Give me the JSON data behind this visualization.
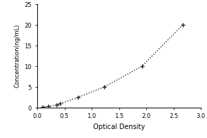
{
  "xlabel": "Optical Density",
  "ylabel": "Concentration(ng/mL)",
  "x_data": [
    0.1,
    0.2,
    0.35,
    0.42,
    0.75,
    1.23,
    1.92,
    2.67
  ],
  "y_data": [
    0.156,
    0.312,
    0.625,
    0.938,
    2.5,
    5.0,
    10.0,
    20.0
  ],
  "xlim": [
    0,
    3
  ],
  "ylim": [
    0,
    25
  ],
  "xticks": [
    0,
    0.5,
    1.0,
    1.5,
    2.0,
    2.5,
    3.0
  ],
  "yticks": [
    0,
    5,
    10,
    15,
    20,
    25
  ],
  "line_color": "#222222",
  "line_style": "dotted",
  "background_color": "#ffffff",
  "figsize": [
    3.0,
    2.0
  ],
  "dpi": 100
}
